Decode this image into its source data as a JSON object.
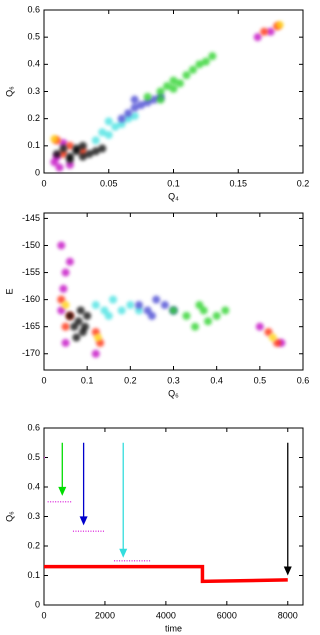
{
  "chart_data": [
    {
      "type": "scatter",
      "xlabel": "Q₄",
      "ylabel": "Q₆",
      "xlim": [
        0,
        0.2
      ],
      "xticks": [
        0,
        0.05,
        0.1,
        0.15,
        0.2
      ],
      "ylim": [
        0,
        0.6
      ],
      "yticks": [
        0,
        0.1,
        0.2,
        0.3,
        0.4,
        0.5,
        0.6
      ],
      "series": [
        {
          "color": "#40e0e0",
          "x": [
            0.04,
            0.045,
            0.05,
            0.055,
            0.06,
            0.065,
            0.07,
            0.05
          ],
          "values": [
            0.12,
            0.15,
            0.14,
            0.17,
            0.18,
            0.2,
            0.21,
            0.19
          ]
        },
        {
          "color": "#4040d0",
          "x": [
            0.06,
            0.065,
            0.07,
            0.075,
            0.08,
            0.085,
            0.09,
            0.07
          ],
          "values": [
            0.2,
            0.22,
            0.24,
            0.25,
            0.26,
            0.27,
            0.28,
            0.27
          ]
        },
        {
          "color": "#20d020",
          "x": [
            0.08,
            0.09,
            0.095,
            0.1,
            0.105,
            0.11,
            0.115,
            0.12,
            0.125,
            0.1,
            0.09,
            0.13
          ],
          "values": [
            0.28,
            0.3,
            0.32,
            0.34,
            0.33,
            0.36,
            0.38,
            0.4,
            0.41,
            0.31,
            0.27,
            0.43
          ]
        },
        {
          "color": "#c000c0",
          "x": [
            0.008,
            0.012,
            0.02,
            0.015,
            0.01,
            0.175,
            0.165
          ],
          "values": [
            0.04,
            0.02,
            0.03,
            0.11,
            0.06,
            0.52,
            0.5
          ]
        },
        {
          "color": "#ff2000",
          "x": [
            0.01,
            0.015,
            0.02,
            0.03,
            0.18,
            0.17
          ],
          "values": [
            0.12,
            0.07,
            0.1,
            0.08,
            0.54,
            0.52
          ]
        },
        {
          "color": "#ffd000",
          "x": [
            0.008,
            0.182
          ],
          "values": [
            0.125,
            0.545
          ]
        },
        {
          "color": "#000000",
          "x": [
            0.01,
            0.015,
            0.02,
            0.025,
            0.03,
            0.035,
            0.04,
            0.02,
            0.03,
            0.025,
            0.045
          ],
          "values": [
            0.07,
            0.09,
            0.06,
            0.08,
            0.1,
            0.07,
            0.08,
            0.05,
            0.06,
            0.09,
            0.09
          ]
        }
      ]
    },
    {
      "type": "scatter",
      "xlabel": "Q₆",
      "ylabel": "E",
      "xlim": [
        0,
        0.6
      ],
      "xticks": [
        0,
        0.1,
        0.2,
        0.3,
        0.4,
        0.5,
        0.6
      ],
      "ylim": [
        -173,
        -144
      ],
      "yticks": [
        -170,
        -165,
        -160,
        -155,
        -150,
        -145
      ],
      "series": [
        {
          "color": "#c000c0",
          "x": [
            0.04,
            0.05,
            0.045,
            0.06,
            0.05,
            0.55,
            0.5,
            0.12,
            0.04
          ],
          "values": [
            -150,
            -155,
            -158,
            -153,
            -168,
            -168,
            -165,
            -170,
            -162
          ]
        },
        {
          "color": "#40e0e0",
          "x": [
            0.12,
            0.14,
            0.16,
            0.18,
            0.2,
            0.22,
            0.15
          ],
          "values": [
            -161,
            -162,
            -160,
            -162,
            -161,
            -162,
            -163
          ]
        },
        {
          "color": "#4040d0",
          "x": [
            0.22,
            0.24,
            0.26,
            0.28,
            0.3,
            0.25
          ],
          "values": [
            -161,
            -162,
            -160,
            -161,
            -162,
            -163
          ]
        },
        {
          "color": "#20d020",
          "x": [
            0.3,
            0.33,
            0.36,
            0.38,
            0.4,
            0.42,
            0.35,
            0.37
          ],
          "values": [
            -162,
            -163,
            -161,
            -164,
            -163,
            -162,
            -165,
            -162
          ]
        },
        {
          "color": "#ff2000",
          "x": [
            0.04,
            0.06,
            0.05,
            0.12,
            0.13,
            0.52,
            0.54
          ],
          "values": [
            -160,
            -163,
            -165,
            -166,
            -168,
            -166,
            -168
          ]
        },
        {
          "color": "#ffd000",
          "x": [
            0.05,
            0.125,
            0.53
          ],
          "values": [
            -161,
            -167,
            -167
          ]
        },
        {
          "color": "#000000",
          "x": [
            0.06,
            0.07,
            0.08,
            0.09,
            0.1,
            0.075,
            0.085,
            0.095
          ],
          "values": [
            -163,
            -165,
            -164,
            -166,
            -163,
            -167,
            -162,
            -165
          ]
        }
      ]
    },
    {
      "type": "line",
      "xlabel": "time",
      "ylabel": "Q₆",
      "xlim": [
        0,
        8500
      ],
      "xticks": [
        0,
        2000,
        4000,
        6000,
        8000
      ],
      "ylim": [
        0,
        0.6
      ],
      "yticks": [
        0,
        0.1,
        0.2,
        0.3,
        0.4,
        0.5,
        0.6
      ],
      "series": [
        {
          "color": "#e040e0",
          "style": "dotted",
          "x": [
            0,
            80,
            100,
            120,
            900,
            925,
            950,
            2000,
            2150,
            2300,
            3500
          ],
          "values": [
            0.5,
            0.5,
            null,
            0.35,
            0.35,
            null,
            0.25,
            0.25,
            null,
            0.15,
            0.15
          ]
        },
        {
          "color": "#ff0000",
          "style": "solid",
          "x": [
            0,
            5200,
            5200,
            8000
          ],
          "values": [
            0.13,
            0.13,
            0.08,
            0.085
          ]
        }
      ],
      "arrows": [
        {
          "color": "#00dd00",
          "x": 600,
          "y_start": 0.55,
          "y_end": 0.37
        },
        {
          "color": "#0000cc",
          "x": 1300,
          "y_start": 0.55,
          "y_end": 0.27
        },
        {
          "color": "#33dddd",
          "x": 2600,
          "y_start": 0.55,
          "y_end": 0.16
        },
        {
          "color": "#000000",
          "x": 8000,
          "y_start": 0.55,
          "y_end": 0.1
        }
      ]
    }
  ]
}
